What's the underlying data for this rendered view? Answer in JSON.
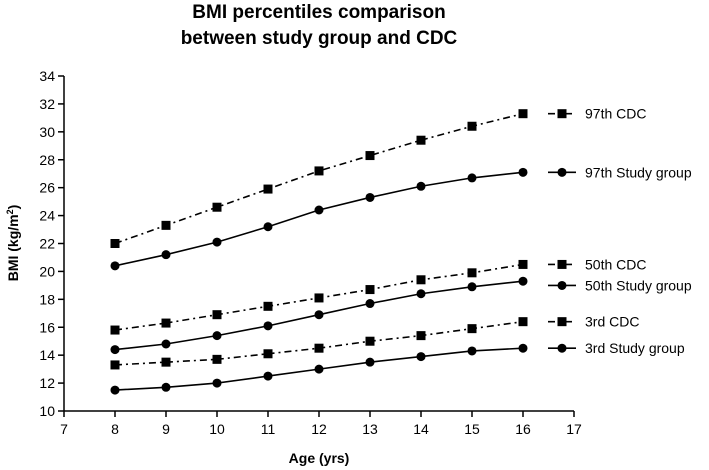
{
  "chart_data": {
    "type": "line",
    "title_lines": [
      "BMI percentiles comparison",
      "between study group and CDC"
    ],
    "xlabel": "Age (yrs)",
    "ylabel": {
      "prefix": "BMI (kg/m",
      "superscript": "2",
      "suffix": ")"
    },
    "xlim": [
      7,
      17
    ],
    "ylim": [
      10,
      34
    ],
    "x_ticks": [
      7,
      8,
      9,
      10,
      11,
      12,
      13,
      14,
      15,
      16,
      17
    ],
    "y_ticks": [
      10,
      12,
      14,
      16,
      18,
      20,
      22,
      24,
      26,
      28,
      30,
      32,
      34
    ],
    "grid": false,
    "x": [
      8,
      9,
      10,
      11,
      12,
      13,
      14,
      15,
      16
    ],
    "series": [
      {
        "name": "97th CDC",
        "marker": "square",
        "line": "dash-dot",
        "values": [
          22.0,
          23.3,
          24.6,
          25.9,
          27.2,
          28.3,
          29.4,
          30.4,
          31.3
        ]
      },
      {
        "name": "97th Study group",
        "marker": "circle",
        "line": "solid",
        "values": [
          20.4,
          21.2,
          22.1,
          23.2,
          24.4,
          25.3,
          26.1,
          26.7,
          27.1
        ]
      },
      {
        "name": "50th CDC",
        "marker": "square",
        "line": "dash-dot",
        "values": [
          15.8,
          16.3,
          16.9,
          17.5,
          18.1,
          18.7,
          19.4,
          19.9,
          20.5
        ]
      },
      {
        "name": "50th Study group",
        "marker": "circle",
        "line": "solid",
        "values": [
          14.4,
          14.8,
          15.4,
          16.1,
          16.9,
          17.7,
          18.4,
          18.9,
          19.3
        ]
      },
      {
        "name": "3rd CDC",
        "marker": "square",
        "line": "dash-dot",
        "values": [
          13.3,
          13.5,
          13.7,
          14.1,
          14.5,
          15.0,
          15.4,
          15.9,
          16.4
        ]
      },
      {
        "name": "3rd Study group",
        "marker": "circle",
        "line": "solid",
        "values": [
          11.5,
          11.7,
          12.0,
          12.5,
          13.0,
          13.5,
          13.9,
          14.3,
          14.5
        ]
      }
    ],
    "legend": "right, inline at series ends",
    "colors": {
      "line": "#000000",
      "marker": "#000000"
    }
  }
}
